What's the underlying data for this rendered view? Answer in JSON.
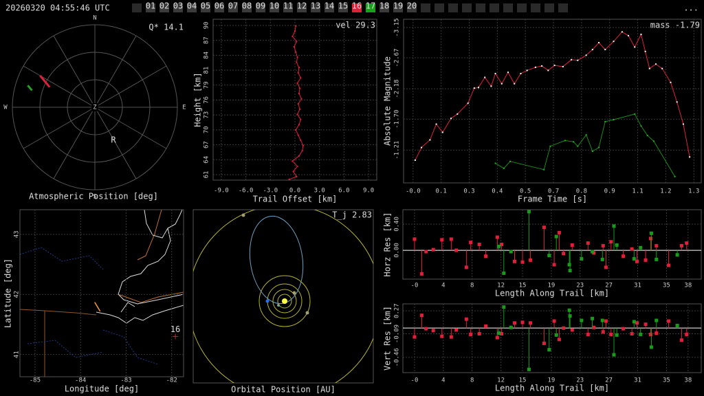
{
  "header": {
    "timestamp": "20260320 04:55:46 UTC",
    "menu": "...",
    "stations": [
      null,
      "01",
      "02",
      "03",
      "04",
      "05",
      "06",
      "07",
      "08",
      "09",
      "10",
      "11",
      "12",
      "13",
      "14",
      "15",
      "16",
      "17",
      "18",
      "19",
      "20",
      null,
      null,
      null,
      null,
      null,
      null,
      null,
      null,
      null,
      null,
      null
    ],
    "station_colors": [
      "#2a2a2a",
      "#3a3a3a",
      "#3a3a3a",
      "#3a3a3a",
      "#3a3a3a",
      "#3a3a3a",
      "#3a3a3a",
      "#3a3a3a",
      "#3a3a3a",
      "#3a3a3a",
      "#3a3a3a",
      "#3a3a3a",
      "#3a3a3a",
      "#3a3a3a",
      "#3a3a3a",
      "#3a3a3a",
      "#e0203a",
      "#1aa01a",
      "#3a3a3a",
      "#3a3a3a",
      "#3a3a3a",
      "#2a2a2a",
      "#2a2a2a",
      "#2a2a2a",
      "#2a2a2a",
      "#2a2a2a",
      "#2a2a2a",
      "#2a2a2a",
      "#2a2a2a",
      "#2a2a2a",
      "#2a2a2a",
      "#2a2a2a"
    ]
  },
  "chart_data": [
    {
      "type": "polar",
      "title": "Atmospheric Position [deg]",
      "annotation": "Q* 14.1",
      "directions": [
        "N",
        "E",
        "S",
        "W"
      ],
      "center_label": "Z",
      "station_label": "R",
      "rlim": [
        0,
        90
      ],
      "series": [
        {
          "color": "#e0203a",
          "azimuth": [
            300,
            294
          ],
          "zenith": [
            69,
            54
          ]
        },
        {
          "color": "#2a9a2a",
          "azimuth": [
            288,
            285
          ],
          "zenith": [
            77,
            71
          ]
        }
      ]
    },
    {
      "type": "line",
      "xlabel": "Trail Offset [km]",
      "ylabel": "Height [km]",
      "annotation": "vel 29.3",
      "color": "#e0203a",
      "grid": true,
      "x": [
        -0.7,
        0.2,
        -0.2,
        0.3,
        -0.3,
        0.5,
        0.9,
        1.0,
        0.7,
        0.4,
        0.1,
        0.5,
        0.7,
        0.3,
        0.6,
        0.4,
        0.8,
        0.5,
        0.6,
        0.3,
        0.7,
        0.4,
        0.5,
        0.2,
        0.3,
        0.1,
        -0.1,
        0.2,
        -0.3,
        0.0,
        0.1
      ],
      "values": [
        60.5,
        61,
        62,
        63,
        64,
        65,
        66,
        67,
        68,
        69,
        70,
        71,
        72,
        73,
        74,
        75,
        76,
        77,
        78,
        79,
        80,
        81,
        82,
        83,
        84,
        85,
        86,
        87,
        88,
        89,
        90
      ],
      "xlim": [
        -10,
        10
      ],
      "ylim": [
        60.34,
        91.29
      ],
      "xticks": [
        {
          "value": -9,
          "label": "-9.0"
        },
        {
          "value": -6,
          "label": "-6.0"
        },
        {
          "value": -3,
          "label": "-3.0"
        },
        {
          "value": 0,
          "label": "0.0"
        },
        {
          "value": 3,
          "label": "3.0"
        },
        {
          "value": 6,
          "label": "6.0"
        },
        {
          "value": 9,
          "label": "9.0"
        }
      ],
      "yticks": [
        {
          "value": 61.4,
          "label": "61"
        },
        {
          "value": 64.27,
          "label": "64"
        },
        {
          "value": 67.14,
          "label": "67"
        },
        {
          "value": 70.01,
          "label": "70"
        },
        {
          "value": 72.88,
          "label": "73"
        },
        {
          "value": 75.75,
          "label": "76"
        },
        {
          "value": 78.62,
          "label": "79"
        },
        {
          "value": 81.49,
          "label": "81"
        },
        {
          "value": 84.36,
          "label": "84"
        },
        {
          "value": 87.23,
          "label": "87"
        },
        {
          "value": 90.1,
          "label": "90"
        }
      ]
    },
    {
      "type": "line",
      "xlabel": "Frame Time [s]",
      "ylabel": "Absolute Magnitude",
      "annotation": "mass -1.79",
      "grid": true,
      "xlim": [
        -0.055,
        1.355
      ],
      "ylim": [
        -0.69,
        -3.28
      ],
      "xticks": [
        {
          "value": -0.01,
          "label": "-0.0"
        },
        {
          "value": 0.123,
          "label": "0.1"
        },
        {
          "value": 0.256,
          "label": "0.3"
        },
        {
          "value": 0.389,
          "label": "0.4"
        },
        {
          "value": 0.522,
          "label": "0.5"
        },
        {
          "value": 0.655,
          "label": "0.7"
        },
        {
          "value": 0.788,
          "label": "0.8"
        },
        {
          "value": 0.921,
          "label": "0.9"
        },
        {
          "value": 1.054,
          "label": "1.1"
        },
        {
          "value": 1.187,
          "label": "1.2"
        },
        {
          "value": 1.32,
          "label": "1.3"
        }
      ],
      "yticks": [
        -3.15,
        -2.67,
        -2.18,
        {
          "value": -1.7,
          "label": "-1.70"
        },
        -1.21
      ],
      "series": [
        {
          "color": "#e0203a",
          "marker_color": "#ffffff",
          "x": [
            0,
            0.03,
            0.07,
            0.1,
            0.13,
            0.17,
            0.2,
            0.25,
            0.28,
            0.3,
            0.33,
            0.36,
            0.38,
            0.41,
            0.44,
            0.47,
            0.5,
            0.53,
            0.57,
            0.6,
            0.63,
            0.66,
            0.7,
            0.74,
            0.77,
            0.81,
            0.84,
            0.87,
            0.9,
            0.94,
            0.98,
            1.01,
            1.04,
            1.07,
            1.09,
            1.11,
            1.14,
            1.17,
            1.21,
            1.24,
            1.27,
            1.3
          ],
          "values": [
            -1.05,
            -1.25,
            -1.37,
            -1.62,
            -1.49,
            -1.71,
            -1.78,
            -1.95,
            -2.19,
            -2.2,
            -2.36,
            -2.22,
            -2.42,
            -2.26,
            -2.44,
            -2.26,
            -2.42,
            -2.47,
            -2.52,
            -2.54,
            -2.47,
            -2.55,
            -2.53,
            -2.64,
            -2.63,
            -2.71,
            -2.8,
            -2.91,
            -2.8,
            -2.93,
            -3.08,
            -3.02,
            -2.84,
            -3.04,
            -2.77,
            -2.5,
            -2.57,
            -2.5,
            -2.28,
            -1.97,
            -1.62,
            -1.1
          ]
        },
        {
          "color": "#1a8a1a",
          "marker_color": "#2ab02a",
          "x": [
            0.38,
            0.42,
            0.45,
            0.61,
            0.64,
            0.71,
            0.75,
            0.77,
            0.81,
            0.84,
            0.87,
            0.9,
            0.94,
            1.04,
            1.07,
            1.1,
            1.13,
            1.23
          ],
          "values": [
            -1.0,
            -0.92,
            -1.03,
            -0.9,
            -1.27,
            -1.36,
            -1.34,
            -1.27,
            -1.45,
            -1.19,
            -1.25,
            -1.66,
            -1.69,
            -1.78,
            -1.59,
            -1.44,
            -1.35,
            -0.79
          ]
        }
      ]
    },
    {
      "type": "map",
      "xlabel": "Longitude [deg]",
      "ylabel": "Latitude [deg]",
      "grid": true,
      "grid_color": "#bbbbbb",
      "xlim": [
        -85.33,
        -81.74
      ],
      "ylim": [
        40.63,
        43.41
      ],
      "xticks": [
        -85,
        -84,
        -83,
        -82
      ],
      "yticks": [
        41,
        42,
        43
      ],
      "series": [
        {
          "color": "#ff9a40",
          "x": [
            -83.69,
            -83.57
          ],
          "values": [
            41.87,
            41.72
          ]
        },
        {
          "color": "#e0203a",
          "label": "16",
          "x": [
            -81.92
          ],
          "values": [
            41.3
          ]
        }
      ]
    },
    {
      "type": "orbit",
      "title": "Orbital Position [AU]",
      "annotation": "T_j 2.83"
    },
    {
      "type": "stem",
      "xlabel": "Length Along Trail [km]",
      "ylabel": "Horz Res [km]",
      "grid": true,
      "xlim": [
        -1.62,
        39.83
      ],
      "ylim": [
        -0.44,
        0.62
      ],
      "xticks": [
        {
          "value": 0,
          "label": "-0"
        },
        4,
        8,
        12,
        15,
        19,
        23,
        27,
        31,
        35,
        38
      ],
      "yticks": [
        {
          "value": 0.4,
          "label": "0.40"
        },
        {
          "value": 0,
          "label": "0.00"
        }
      ],
      "series": [
        {
          "color": "#e0203a",
          "x": [
            0.0,
            1.0,
            1.6,
            2.6,
            3.8,
            5.1,
            5.8,
            7.2,
            7.8,
            9.0,
            9.9,
            11.5,
            12.1,
            13.9,
            15.0,
            16.1,
            18.0,
            19.4,
            20.1,
            20.7,
            21.9,
            24.1,
            24.9,
            26.2,
            26.6,
            27.3,
            29.0,
            30.2,
            30.9,
            32.1,
            32.8,
            33.6,
            35.3,
            37.1,
            37.8
          ],
          "values": [
            0.17,
            -0.36,
            -0.02,
            0.01,
            0.16,
            0.17,
            0.0,
            -0.26,
            0.12,
            0.09,
            -0.09,
            0.2,
            0.09,
            -0.17,
            -0.18,
            -0.15,
            0.35,
            -0.22,
            0.27,
            -0.05,
            0.08,
            0.11,
            -0.04,
            0.07,
            -0.26,
            0.13,
            -0.09,
            0.02,
            -0.17,
            -0.15,
            0.18,
            0.07,
            -0.23,
            0.07,
            0.11
          ]
        },
        {
          "color": "#1a9a1a",
          "x": [
            11.7,
            12.4,
            13.4,
            15.9,
            18.7,
            19.7,
            21.5,
            21.6,
            23.2,
            24.7,
            26.1,
            27.7,
            28.1,
            30.5,
            31.4,
            32.9,
            33.6,
            36.5
          ],
          "values": [
            0.06,
            -0.35,
            -0.02,
            0.59,
            -0.08,
            0.21,
            -0.22,
            -0.31,
            -0.13,
            -0.02,
            -0.14,
            0.37,
            0.08,
            -0.13,
            0.04,
            0.26,
            -0.14,
            -0.07
          ]
        }
      ]
    },
    {
      "type": "stem",
      "xlabel": "Length Along Trail [km]",
      "ylabel": "Vert Res [km]",
      "grid": true,
      "xlim": [
        -1.62,
        39.83
      ],
      "ylim": [
        -0.7,
        0.38
      ],
      "xticks": [
        {
          "value": 0,
          "label": "-0"
        },
        4,
        8,
        12,
        15,
        19,
        23,
        27,
        31,
        35,
        38
      ],
      "yticks": [
        0.27,
        -0.09,
        -0.46
      ],
      "series": [
        {
          "color": "#e0203a",
          "x": [
            0.0,
            1.0,
            1.6,
            2.6,
            3.8,
            5.1,
            5.8,
            7.2,
            7.8,
            9.0,
            9.9,
            11.5,
            12.1,
            13.9,
            15.0,
            16.1,
            18.0,
            19.4,
            20.1,
            20.7,
            21.9,
            24.1,
            24.9,
            26.2,
            26.6,
            27.3,
            29.0,
            30.2,
            30.9,
            32.1,
            32.8,
            33.6,
            35.3,
            37.1,
            37.8
          ],
          "values": [
            -0.14,
            0.2,
            -0.01,
            -0.04,
            -0.13,
            -0.14,
            -0.03,
            0.14,
            -0.1,
            -0.09,
            0.03,
            -0.15,
            -0.09,
            0.08,
            0.09,
            0.08,
            -0.24,
            0.11,
            -0.18,
            0.0,
            -0.03,
            -0.1,
            0.01,
            -0.06,
            0.11,
            -0.1,
            -0.01,
            -0.09,
            0.08,
            0.06,
            -0.1,
            -0.08,
            0.11,
            -0.19,
            -0.1
          ]
        },
        {
          "color": "#1a9a1a",
          "x": [
            11.7,
            12.4,
            13.4,
            15.9,
            18.7,
            19.7,
            21.5,
            21.6,
            23.2,
            24.7,
            26.1,
            27.7,
            28.1,
            30.5,
            31.4,
            32.9,
            33.6,
            36.5
          ],
          "values": [
            -0.08,
            0.33,
            0.01,
            -0.65,
            -0.34,
            -0.11,
            0.28,
            0.19,
            0.12,
            0.15,
            0.12,
            -0.42,
            -0.11,
            0.1,
            -0.1,
            -0.3,
            0.12,
            0.04
          ]
        }
      ]
    }
  ]
}
